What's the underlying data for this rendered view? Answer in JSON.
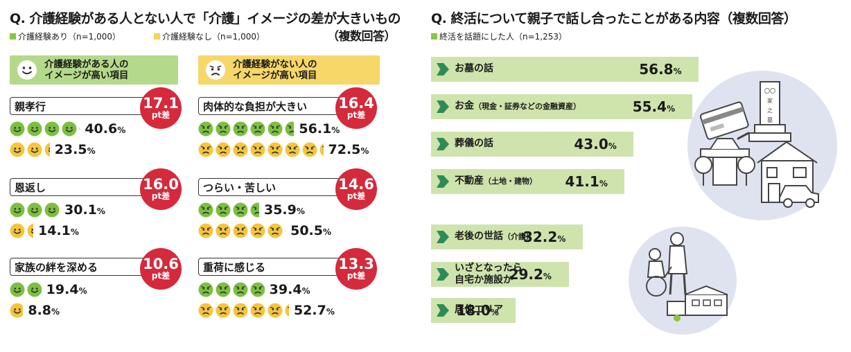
{
  "left": {
    "title": "Q. 介護経験がある人とない人で「介護」イメージの差が大きいもの",
    "title_suffix": "（複数回答）",
    "legend": [
      {
        "label": "介護経験あり（n=1,000）",
        "color": "#8cc63f"
      },
      {
        "label": "介護経験なし（n=1,000）",
        "color": "#f5d35a"
      }
    ],
    "headers": [
      {
        "line1": "介護経験がある人の",
        "line2": "イメージが高い項目",
        "color": "#b5d98a"
      },
      {
        "line1": "介護経験がない人の",
        "line2": "イメージが高い項目",
        "color": "#f6d767"
      }
    ],
    "badge_unit": "pt差"
  },
  "right": {
    "title": "Q. 終活について親子で話し合ったことがある内容（複数回答）",
    "legend": {
      "label": "終活を話題にした人（n=1,253）",
      "color": "#8cc63f"
    }
  },
  "colors": {
    "green_face": "#7cc040",
    "yellow_face": "#f4c53d",
    "badge": "#d42a3c",
    "bar": "#cfe3ad",
    "chevron": "#2e8b57",
    "circle": "#dfe3f0"
  },
  "chart_data": [
    {
      "type": "table",
      "title": "Q. 介護経験がある人とない人で「介護」イメージの差が大きいもの",
      "unit": "%",
      "series": [
        {
          "name": "介護経験あり（n=1,000）"
        },
        {
          "name": "介護経験なし（n=1,000）"
        }
      ],
      "groups": [
        {
          "name": "介護経験がある人のイメージが高い項目",
          "items": [
            {
              "label": "親孝行",
              "with_experience": 40.6,
              "without_experience": 23.5,
              "diff": "17.1"
            },
            {
              "label": "恩返し",
              "with_experience": 30.1,
              "without_experience": 14.1,
              "diff": "16.0"
            },
            {
              "label": "家族の絆を深める",
              "with_experience": 19.4,
              "without_experience": 8.8,
              "diff": "10.6"
            }
          ]
        },
        {
          "name": "介護経験がない人のイメージが高い項目",
          "items": [
            {
              "label": "肉体的な負担が大きい",
              "with_experience": 56.1,
              "without_experience": 72.5,
              "diff": "16.4"
            },
            {
              "label": "つらい・苦しい",
              "with_experience": 35.9,
              "without_experience": 50.5,
              "diff": "14.6"
            },
            {
              "label": "重荷に感じる",
              "with_experience": 39.4,
              "without_experience": 52.7,
              "diff": "13.3"
            }
          ]
        }
      ]
    },
    {
      "type": "bar",
      "orientation": "horizontal",
      "title": "Q. 終活について親子で話し合ったことがある内容（複数回答）",
      "unit": "%",
      "series": [
        {
          "name": "終活を話題にした人（n=1,253）"
        }
      ],
      "bars": [
        {
          "label": "お墓の話",
          "note": "",
          "line2": "",
          "value": 56.8
        },
        {
          "label": "お金",
          "note": "（現金・証券などの金融資産）",
          "line2": "",
          "value": 55.4
        },
        {
          "label": "葬儀の話",
          "note": "",
          "line2": "",
          "value": 43.0
        },
        {
          "label": "不動産",
          "note": "（土地・建物）",
          "line2": "",
          "value": 41.1
        },
        {
          "label": "老後の世話",
          "note": "（介護）",
          "line2": "",
          "value": 32.2
        },
        {
          "label": "いざとなったら",
          "note": "",
          "line2": "自宅か施設か",
          "value": 29.2
        },
        {
          "label": "居住エリア",
          "note": "",
          "line2": "",
          "value": 18.0
        }
      ]
    }
  ]
}
